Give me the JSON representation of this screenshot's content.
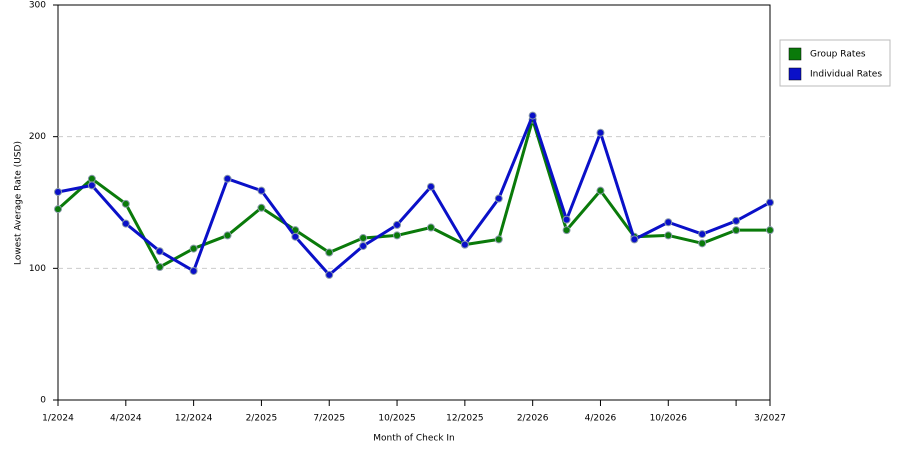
{
  "chart_data": {
    "type": "line",
    "x_label": "Month of Check In",
    "y_label": "Lowest Average Rate (USD)",
    "categories": [
      "1/2024",
      null,
      "4/2024",
      null,
      "12/2024",
      null,
      "2/2025",
      null,
      "7/2025",
      null,
      "10/2025",
      null,
      "12/2025",
      null,
      "2/2026",
      null,
      "4/2026",
      null,
      "10/2026",
      null,
      null,
      "3/2027"
    ],
    "series": [
      {
        "name": "Group Rates",
        "color": "#0a7a0a",
        "values": [
          145,
          168,
          149,
          101,
          115,
          125,
          146,
          129,
          112,
          123,
          125,
          131,
          118,
          122,
          213,
          129,
          159,
          124,
          125,
          119,
          129,
          129
        ]
      },
      {
        "name": "Individual Rates",
        "color": "#0a10c8",
        "values": [
          158,
          163,
          134,
          113,
          98,
          168,
          159,
          124,
          95,
          117,
          133,
          162,
          118,
          153,
          216,
          137,
          203,
          122,
          135,
          126,
          136,
          150
        ]
      }
    ],
    "ylim": [
      0,
      300
    ],
    "yticks": [
      0,
      100,
      200,
      300
    ],
    "grid": true
  }
}
